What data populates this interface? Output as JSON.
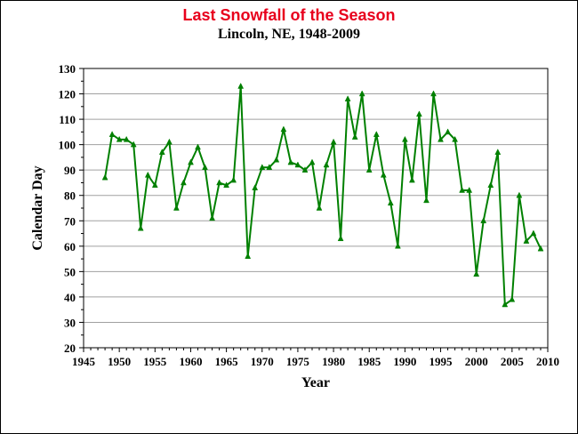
{
  "chart_data": {
    "type": "line",
    "title": "Last Snowfall of the Season",
    "subtitle": "Lincoln, NE, 1948-2009",
    "xlabel": "Year",
    "ylabel": "Calendar Day",
    "xlim": [
      1945,
      2010
    ],
    "ylim": [
      20,
      130
    ],
    "x_ticks": [
      1945,
      1950,
      1955,
      1960,
      1965,
      1970,
      1975,
      1980,
      1985,
      1990,
      1995,
      2000,
      2005,
      2010
    ],
    "y_ticks": [
      20,
      30,
      40,
      50,
      60,
      70,
      80,
      90,
      100,
      110,
      120,
      130
    ],
    "grid": "horizontal",
    "legend": "none",
    "colors": {
      "series": "#008000",
      "title": "#e8001c",
      "grid": "#a0a0a0"
    },
    "series": [
      {
        "marker": "triangle",
        "x": [
          1948,
          1949,
          1950,
          1951,
          1952,
          1953,
          1954,
          1955,
          1956,
          1957,
          1958,
          1959,
          1960,
          1961,
          1962,
          1963,
          1964,
          1965,
          1966,
          1967,
          1968,
          1969,
          1970,
          1971,
          1972,
          1973,
          1974,
          1975,
          1976,
          1977,
          1978,
          1979,
          1980,
          1981,
          1982,
          1983,
          1984,
          1985,
          1986,
          1987,
          1988,
          1989,
          1990,
          1991,
          1992,
          1993,
          1994,
          1995,
          1996,
          1997,
          1998,
          1999,
          2000,
          2001,
          2002,
          2003,
          2004,
          2005,
          2006,
          2007,
          2008,
          2009
        ],
        "y": [
          87,
          104,
          102,
          102,
          100,
          67,
          88,
          84,
          97,
          101,
          75,
          85,
          93,
          99,
          91,
          71,
          85,
          84,
          86,
          123,
          56,
          83,
          91,
          91,
          94,
          106,
          93,
          92,
          90,
          93,
          75,
          92,
          101,
          63,
          118,
          103,
          120,
          90,
          104,
          88,
          77,
          60,
          102,
          86,
          112,
          78,
          120,
          102,
          105,
          102,
          82,
          82,
          49,
          70,
          84,
          97,
          37,
          39,
          80,
          62,
          65,
          59
        ]
      }
    ]
  }
}
